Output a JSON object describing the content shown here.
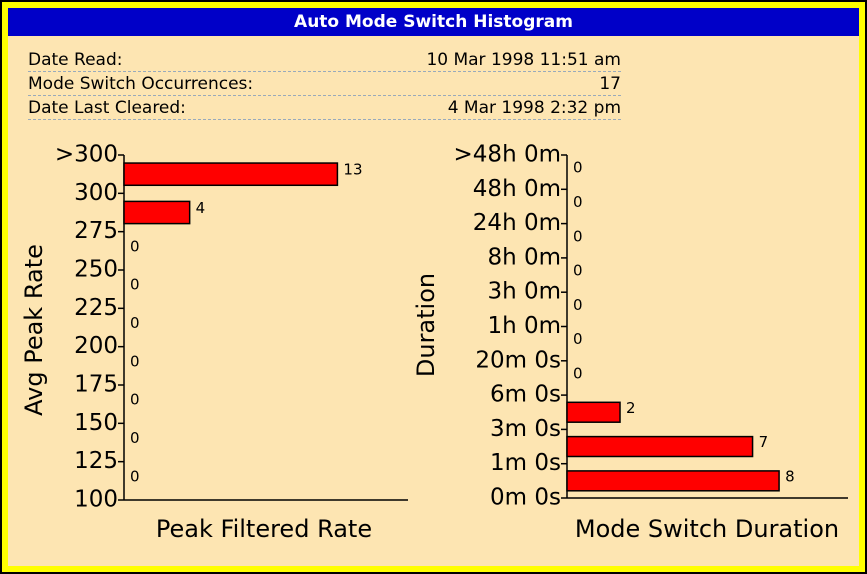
{
  "title": "Auto Mode Switch Histogram",
  "info": [
    {
      "label": "Date Read:",
      "value": "10 Mar 1998 11:51 am"
    },
    {
      "label": "Mode Switch Occurrences:",
      "value": "17"
    },
    {
      "label": "Date Last Cleared:",
      "value": "4 Mar 1998 2:32 pm"
    }
  ],
  "chart_data": [
    {
      "type": "hbar-histogram",
      "ylabel": "Avg Peak Rate",
      "xlabel": "Peak Filtered Rate",
      "bins": [
        ">300",
        "300",
        "275",
        "250",
        "225",
        "200",
        "175",
        "150",
        "125",
        "100"
      ],
      "values": [
        13,
        4,
        0,
        0,
        0,
        0,
        0,
        0,
        0
      ],
      "xlim": [
        0,
        17.3
      ],
      "color": "#ff0000"
    },
    {
      "type": "hbar-histogram",
      "ylabel": "Duration",
      "xlabel": "Mode Switch Duration",
      "bins": [
        ">48h 0m",
        "48h 0m",
        "24h 0m",
        "8h 0m",
        "3h 0m",
        "1h 0m",
        "20m 0s",
        "6m 0s",
        "3m 0s",
        "1m 0s",
        "0m 0s"
      ],
      "values": [
        0,
        0,
        0,
        0,
        0,
        0,
        0,
        2,
        7,
        8
      ],
      "xlim": [
        0,
        10.6
      ],
      "color": "#ff0000"
    }
  ]
}
